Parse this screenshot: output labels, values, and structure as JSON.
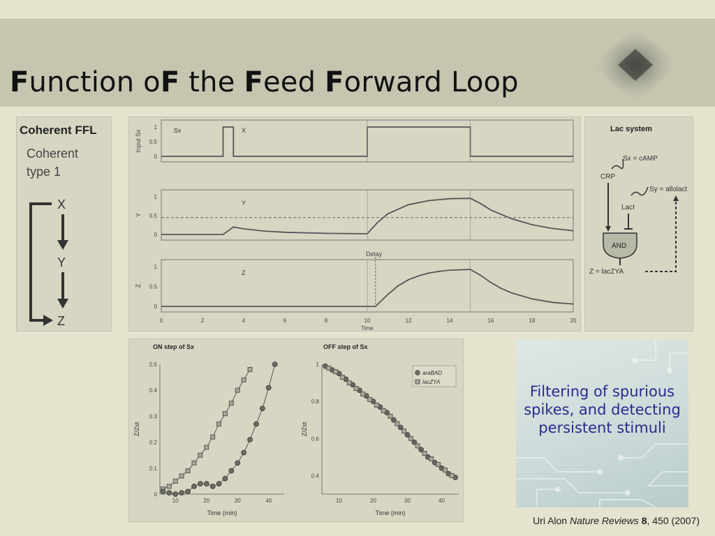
{
  "slide": {
    "title_parts": [
      {
        "text": "F",
        "bold": true
      },
      {
        "text": "unction o",
        "bold": false
      },
      {
        "text": "F",
        "bold": true
      },
      {
        "text": " the ",
        "bold": false
      },
      {
        "text": "F",
        "bold": true
      },
      {
        "text": "eed ",
        "bold": false
      },
      {
        "text": "F",
        "bold": true
      },
      {
        "text": "orward Loop",
        "bold": false
      }
    ],
    "caption": "Filtering of spurious spikes, and detecting persistent stimuli",
    "citation": {
      "author": "Uri Alon",
      "journal": "Nature Reviews",
      "volume": "8",
      "rest": ", 450 (2007)"
    },
    "colors": {
      "background": "#e4e3cd",
      "title_bar": "#c5c5b0",
      "caption_text": "#2a2a8e"
    }
  },
  "ffl_panel": {
    "heading": "Coherent FFL",
    "subtitle_line1": "Coherent",
    "subtitle_line2": "type 1",
    "nodes": [
      "X",
      "Y",
      "Z"
    ]
  },
  "lac_panel": {
    "title": "Lac system",
    "sx_label": "Sx = cAMP",
    "sy_label": "Sy = allolact",
    "crp": "CRP",
    "laci": "LacI",
    "gate": "AND",
    "z_label": "Z = lacZYA"
  },
  "chart_data": [
    {
      "type": "line",
      "panel": "time-courses",
      "x_ticks": [
        "0",
        "2",
        "4",
        "6",
        "8",
        "10",
        "12",
        "14",
        "16",
        "18",
        "20"
      ],
      "xlabel": "Time",
      "delay_label": "Delay",
      "xlim": [
        0,
        20
      ],
      "subplots": [
        {
          "ylabel": "Input Sx",
          "label": "X",
          "extra_label": "Sx",
          "y_ticks": [
            "0",
            "0.5",
            "1"
          ],
          "series": [
            {
              "x": [
                0,
                3,
                3,
                3.5,
                3.5,
                10,
                10,
                15,
                15,
                20
              ],
              "y": [
                0,
                0,
                1,
                1,
                0,
                0,
                1,
                1,
                0,
                0
              ]
            }
          ]
        },
        {
          "ylabel": "Y",
          "label": "Y",
          "y_ticks": [
            "0",
            "0.5",
            "1"
          ],
          "threshold": 0.45,
          "series": [
            {
              "x": [
                0,
                3,
                3.5,
                4,
                5,
                6,
                8,
                10,
                10.5,
                11,
                12,
                13,
                14,
                15,
                15.5,
                16,
                17,
                18,
                19,
                20
              ],
              "y": [
                0,
                0,
                0.2,
                0.15,
                0.09,
                0.06,
                0.03,
                0.02,
                0.32,
                0.55,
                0.79,
                0.9,
                0.95,
                0.96,
                0.82,
                0.65,
                0.42,
                0.26,
                0.16,
                0.1
              ]
            }
          ]
        },
        {
          "ylabel": "Z",
          "label": "Z",
          "y_ticks": [
            "0",
            "0.5",
            "1"
          ],
          "series": [
            {
              "x": [
                0,
                10,
                10.4,
                11,
                11.5,
                12,
                12.5,
                13,
                13.5,
                14,
                14.5,
                15,
                15.5,
                16,
                16.5,
                17,
                18,
                19,
                20
              ],
              "y": [
                0,
                0,
                0,
                0.3,
                0.52,
                0.67,
                0.77,
                0.84,
                0.88,
                0.91,
                0.92,
                0.93,
                0.78,
                0.6,
                0.45,
                0.34,
                0.19,
                0.1,
                0.06
              ]
            }
          ]
        }
      ]
    },
    {
      "type": "scatter",
      "title": "ON step of Sx",
      "xlabel": "Time (min)",
      "ylabel": "Z/Zst",
      "xlim": [
        5,
        45
      ],
      "ylim": [
        0,
        0.5
      ],
      "x_ticks": [
        "10",
        "20",
        "30",
        "40"
      ],
      "y_ticks": [
        "0",
        "0.1",
        "0.2",
        "0.3",
        "0.4",
        "0.5"
      ],
      "series": [
        {
          "name": "lacZYA",
          "marker": "square",
          "x": [
            6,
            8,
            10,
            12,
            14,
            16,
            18,
            20,
            22,
            24,
            26,
            28,
            30,
            32,
            34
          ],
          "y": [
            0.02,
            0.03,
            0.05,
            0.07,
            0.09,
            0.12,
            0.15,
            0.18,
            0.22,
            0.27,
            0.31,
            0.35,
            0.4,
            0.44,
            0.48
          ]
        },
        {
          "name": "araBAD",
          "marker": "circle",
          "x": [
            6,
            8,
            10,
            12,
            14,
            16,
            18,
            20,
            22,
            24,
            26,
            28,
            30,
            32,
            34,
            36,
            38,
            40,
            42
          ],
          "y": [
            0.01,
            0.005,
            0.0,
            0.005,
            0.01,
            0.03,
            0.04,
            0.04,
            0.03,
            0.04,
            0.06,
            0.09,
            0.12,
            0.16,
            0.21,
            0.27,
            0.33,
            0.41,
            0.5
          ]
        }
      ]
    },
    {
      "type": "scatter",
      "title": "OFF step of Sx",
      "xlabel": "Time (min)",
      "ylabel": "Z/Zst",
      "xlim": [
        5,
        45
      ],
      "ylim": [
        0.3,
        1.0
      ],
      "x_ticks": [
        "10",
        "20",
        "30",
        "40"
      ],
      "y_ticks": [
        "0.4",
        "0.6",
        "0.8",
        "1"
      ],
      "legend": [
        "araBAD",
        "lacZYA"
      ],
      "legend_position": "top-right",
      "series": [
        {
          "name": "araBAD",
          "marker": "circle",
          "x": [
            6,
            8,
            10,
            12,
            14,
            16,
            18,
            20,
            22,
            24,
            26,
            28,
            30,
            32,
            34,
            36,
            38,
            40,
            42,
            44
          ],
          "y": [
            0.99,
            0.97,
            0.95,
            0.92,
            0.89,
            0.86,
            0.83,
            0.8,
            0.77,
            0.74,
            0.7,
            0.66,
            0.62,
            0.58,
            0.54,
            0.5,
            0.47,
            0.44,
            0.41,
            0.39
          ]
        },
        {
          "name": "lacZYA",
          "marker": "square",
          "x": [
            7,
            9,
            11,
            13,
            15,
            17,
            19,
            21,
            23,
            25,
            27,
            29,
            31,
            33,
            35,
            37,
            39,
            41,
            43
          ],
          "y": [
            0.98,
            0.96,
            0.93,
            0.9,
            0.87,
            0.84,
            0.81,
            0.78,
            0.75,
            0.72,
            0.68,
            0.64,
            0.6,
            0.56,
            0.52,
            0.49,
            0.46,
            0.43,
            0.4
          ]
        }
      ]
    }
  ]
}
